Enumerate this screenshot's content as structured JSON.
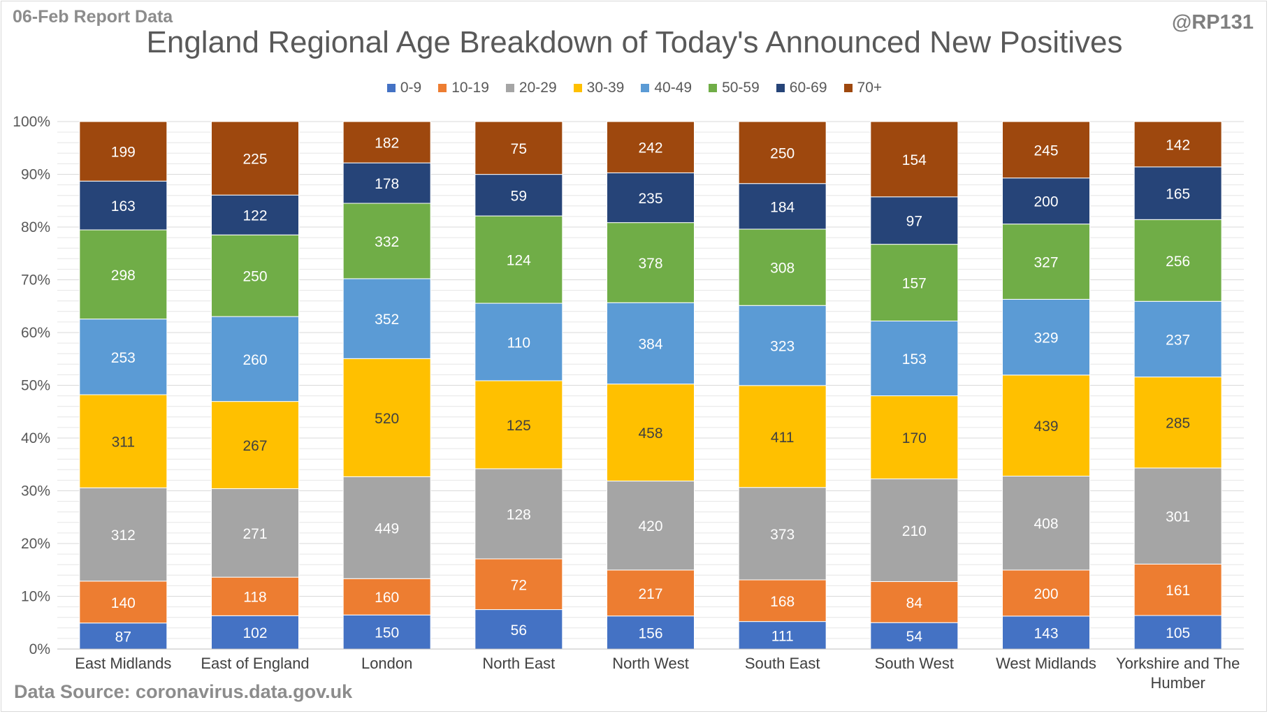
{
  "header": {
    "report_date": "06-Feb Report Data",
    "handle": "@RP131"
  },
  "footer": {
    "source": "Data Source: coronavirus.data.gov.uk"
  },
  "colors": {
    "0-9": "#4472c4",
    "10-19": "#ed7d31",
    "20-29": "#a5a5a5",
    "30-39": "#ffc000",
    "40-49": "#5b9bd5",
    "50-59": "#70ad47",
    "60-69": "#264478",
    "70+": "#9e480e",
    "gridline": "#e6e6e6",
    "axis": "#bfbfbf"
  },
  "chart_data": {
    "type": "bar",
    "stacked": "percent",
    "title": "England Regional Age Breakdown of Today's Announced New Positives",
    "legend_position": "top",
    "grid": true,
    "ylim": [
      0,
      100
    ],
    "yticks": [
      "0%",
      "10%",
      "20%",
      "30%",
      "40%",
      "50%",
      "60%",
      "70%",
      "80%",
      "90%",
      "100%"
    ],
    "categories": [
      [
        "East Midlands"
      ],
      [
        "East of England"
      ],
      [
        "London"
      ],
      [
        "North East"
      ],
      [
        "North West"
      ],
      [
        "South East"
      ],
      [
        "South West"
      ],
      [
        "West Midlands"
      ],
      [
        "Yorkshire and The",
        "Humber"
      ]
    ],
    "series": [
      {
        "name": "0-9",
        "values": [
          87,
          102,
          150,
          56,
          156,
          111,
          54,
          143,
          105
        ]
      },
      {
        "name": "10-19",
        "values": [
          140,
          118,
          160,
          72,
          217,
          168,
          84,
          200,
          161
        ]
      },
      {
        "name": "20-29",
        "values": [
          312,
          271,
          449,
          128,
          420,
          373,
          210,
          408,
          301
        ]
      },
      {
        "name": "30-39",
        "values": [
          311,
          267,
          520,
          125,
          458,
          411,
          170,
          439,
          285
        ]
      },
      {
        "name": "40-49",
        "values": [
          253,
          260,
          352,
          110,
          384,
          323,
          153,
          329,
          237
        ]
      },
      {
        "name": "50-59",
        "values": [
          298,
          250,
          332,
          124,
          378,
          308,
          157,
          327,
          256
        ]
      },
      {
        "name": "60-69",
        "values": [
          163,
          122,
          178,
          59,
          235,
          184,
          97,
          200,
          165
        ]
      },
      {
        "name": "70+",
        "values": [
          199,
          225,
          182,
          75,
          242,
          250,
          154,
          245,
          142
        ]
      }
    ]
  }
}
